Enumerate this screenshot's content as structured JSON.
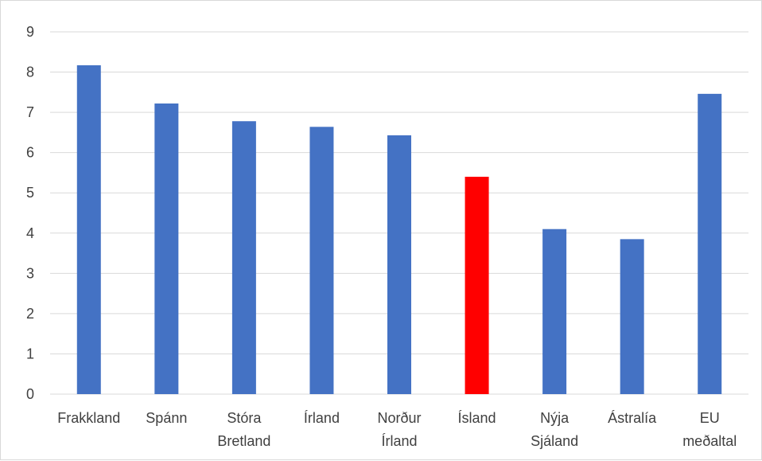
{
  "chart_data": {
    "type": "bar",
    "categories": [
      [
        "Frakkland"
      ],
      [
        "Spánn"
      ],
      [
        "Stóra",
        "Bretland"
      ],
      [
        "Írland"
      ],
      [
        "Norður",
        "Írland"
      ],
      [
        "Ísland"
      ],
      [
        "Nýja",
        "Sjáland"
      ],
      [
        "Ástralía"
      ],
      [
        "EU",
        "meðaltal"
      ]
    ],
    "values": [
      8.17,
      7.22,
      6.78,
      6.64,
      6.43,
      5.4,
      4.1,
      3.85,
      7.46
    ],
    "bar_colors": [
      "#4472c4",
      "#4472c4",
      "#4472c4",
      "#4472c4",
      "#4472c4",
      "#ff0000",
      "#4472c4",
      "#4472c4",
      "#4472c4"
    ],
    "ylim": [
      0,
      9
    ],
    "yticks": [
      0,
      1,
      2,
      3,
      4,
      5,
      6,
      7,
      8,
      9
    ],
    "grid": true,
    "legend": "none",
    "colors": {
      "bar": "#4472c4",
      "highlight": "#ff0000",
      "grid": "#d9d9d9",
      "text": "#404040"
    }
  }
}
